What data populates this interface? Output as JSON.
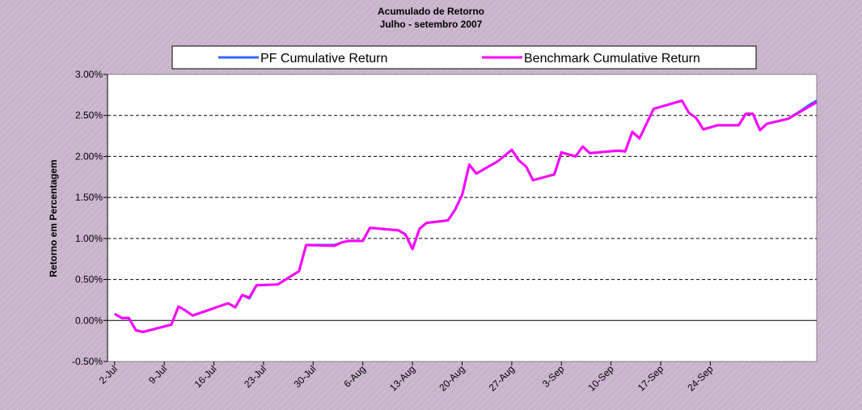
{
  "chart_data": {
    "type": "line",
    "title": "Acumulado de Retorno",
    "subtitle": "Julho - setembro 2007",
    "y_label": "Retorno em Percentagem",
    "x": [
      "2-Jul",
      "3-Jul",
      "4-Jul",
      "5-Jul",
      "6-Jul",
      "10-Jul",
      "11-Jul",
      "12-Jul",
      "13-Jul",
      "18-Jul",
      "19-Jul",
      "20-Jul",
      "21-Jul",
      "22-Jul",
      "25-Jul",
      "28-Jul",
      "29-Jul",
      "2-Aug",
      "3-Aug",
      "4-Aug",
      "6-Aug",
      "7-Aug",
      "11-Aug",
      "12-Aug",
      "13-Aug",
      "14-Aug",
      "15-Aug",
      "18-Aug",
      "19-Aug",
      "20-Aug",
      "21-Aug",
      "22-Aug",
      "25-Aug",
      "27-Aug",
      "28-Aug",
      "29-Aug",
      "30-Aug",
      "2-Sep",
      "3-Sep",
      "5-Sep",
      "6-Sep",
      "7-Sep",
      "11-Sep",
      "12-Sep",
      "13-Sep",
      "14-Sep",
      "16-Sep",
      "20-Sep",
      "21-Sep",
      "22-Sep",
      "23-Sep",
      "25-Sep",
      "28-Sep",
      "29-Sep",
      "30-Sep",
      "1-Oct",
      "2-Oct",
      "5-Oct",
      "7-Oct",
      "8-Oct",
      "9-Oct"
    ],
    "series": [
      {
        "name": "PF Cumulative Return",
        "color": "#3366ff",
        "values": [
          0.08,
          0.03,
          0.03,
          -0.12,
          -0.14,
          -0.05,
          0.17,
          0.12,
          0.06,
          0.21,
          0.16,
          0.31,
          0.27,
          0.43,
          0.44,
          0.6,
          0.92,
          0.92,
          0.95,
          0.97,
          0.97,
          1.13,
          1.1,
          1.05,
          0.87,
          1.12,
          1.19,
          1.22,
          1.35,
          1.53,
          1.9,
          1.79,
          1.94,
          2.08,
          1.95,
          1.88,
          1.71,
          1.78,
          2.05,
          2.0,
          2.12,
          2.04,
          2.07,
          2.06,
          2.3,
          2.22,
          2.58,
          2.68,
          2.53,
          2.47,
          2.33,
          2.38,
          2.38,
          2.52,
          2.52,
          2.32,
          2.4,
          2.46,
          2.57,
          2.63,
          2.68
        ]
      },
      {
        "name": "Benchmark Cumulative Return",
        "color": "#ff00ff",
        "values": [
          0.08,
          0.03,
          0.03,
          -0.12,
          -0.14,
          -0.05,
          0.17,
          0.12,
          0.06,
          0.21,
          0.16,
          0.31,
          0.28,
          0.43,
          0.44,
          0.6,
          0.92,
          0.91,
          0.95,
          0.97,
          0.97,
          1.13,
          1.1,
          1.05,
          0.87,
          1.12,
          1.19,
          1.22,
          1.35,
          1.53,
          1.9,
          1.79,
          1.94,
          2.08,
          1.95,
          1.88,
          1.71,
          1.78,
          2.05,
          2.0,
          2.12,
          2.04,
          2.07,
          2.06,
          2.3,
          2.22,
          2.58,
          2.68,
          2.53,
          2.47,
          2.33,
          2.38,
          2.38,
          2.52,
          2.52,
          2.32,
          2.4,
          2.46,
          2.56,
          2.61,
          2.66
        ]
      }
    ],
    "xlim": [
      "1-Jul",
      "9-Oct"
    ],
    "xticks": [
      "2-Jul",
      "9-Jul",
      "16-Jul",
      "23-Jul",
      "30-Jul",
      "6-Aug",
      "13-Aug",
      "20-Aug",
      "27-Aug",
      "3-Sep",
      "10-Sep",
      "17-Sep",
      "24-Sep"
    ],
    "ylim": [
      -0.5,
      3
    ],
    "yticks": [
      {
        "value": -0.5,
        "label": "-0.50%"
      },
      {
        "value": 0,
        "label": "0.00%"
      },
      {
        "value": 0.5,
        "label": "0.50%"
      },
      {
        "value": 1,
        "label": "1.00%"
      },
      {
        "value": 1.5,
        "label": "1.50%"
      },
      {
        "value": 2,
        "label": "2.00%"
      },
      {
        "value": 2.5,
        "label": "2.50%"
      },
      {
        "value": 3,
        "label": "3.00%"
      }
    ],
    "grid": true,
    "legend": "top"
  }
}
